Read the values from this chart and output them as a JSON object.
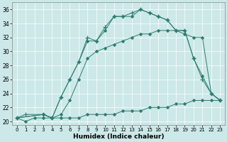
{
  "xlabel": "Humidex (Indice chaleur)",
  "bg_color": "#cce8e8",
  "line_color": "#2e7d6e",
  "xlim": [
    -0.5,
    23.5
  ],
  "ylim": [
    19.5,
    37
  ],
  "xticks": [
    0,
    1,
    2,
    3,
    4,
    5,
    6,
    7,
    8,
    9,
    10,
    11,
    12,
    13,
    14,
    15,
    16,
    17,
    18,
    19,
    20,
    21,
    22,
    23
  ],
  "yticks": [
    20,
    22,
    24,
    26,
    28,
    30,
    32,
    34,
    36
  ],
  "lines": [
    {
      "x": [
        0,
        1,
        2,
        3,
        4,
        5,
        6,
        7,
        8,
        9,
        10,
        11,
        12,
        13,
        14,
        15,
        16,
        17,
        18,
        19,
        20,
        21,
        22,
        23
      ],
      "y": [
        20.5,
        20,
        20.5,
        20.5,
        20.5,
        20.5,
        20.5,
        20.5,
        21,
        21,
        21,
        21,
        21.5,
        21.5,
        21.5,
        22,
        22,
        22,
        22.5,
        22.5,
        23,
        23,
        23,
        23
      ],
      "marker": "D",
      "markersize": 2,
      "lw": 0.7
    },
    {
      "x": [
        0,
        3,
        4,
        5,
        6,
        7,
        8,
        9,
        10,
        11,
        12,
        13,
        14,
        15,
        16,
        17,
        18,
        19,
        20,
        21,
        22,
        23
      ],
      "y": [
        20.5,
        21,
        20.5,
        21,
        23,
        26,
        29,
        30,
        30.5,
        31,
        31.5,
        32,
        32.5,
        32.5,
        33,
        33,
        33,
        33,
        29,
        26.5,
        24,
        23
      ],
      "marker": "D",
      "markersize": 2,
      "lw": 0.7
    },
    {
      "x": [
        0,
        3,
        4,
        5,
        6,
        7,
        8,
        9,
        10,
        11,
        12,
        13,
        14,
        15,
        16,
        17,
        18,
        19,
        20,
        21,
        22,
        23
      ],
      "y": [
        20.5,
        21,
        20.5,
        23.5,
        26,
        28.5,
        31.5,
        31.5,
        33,
        35,
        35,
        35,
        36,
        35.5,
        35,
        34.5,
        33,
        32.5,
        32,
        32,
        24,
        23
      ],
      "marker": "D",
      "markersize": 2,
      "lw": 0.7
    },
    {
      "x": [
        0,
        1,
        3,
        4,
        5,
        6,
        7,
        8,
        9,
        10,
        11,
        12,
        13,
        14,
        15,
        16,
        17,
        18,
        19,
        20,
        21,
        22,
        23
      ],
      "y": [
        20.5,
        21,
        21,
        20.5,
        23.5,
        26,
        28.5,
        32,
        31.5,
        33.5,
        35,
        35,
        35.5,
        36,
        35.5,
        35,
        34.5,
        33,
        33,
        29,
        26,
        24,
        23
      ],
      "marker": "+",
      "markersize": 4,
      "lw": 0.7
    }
  ]
}
